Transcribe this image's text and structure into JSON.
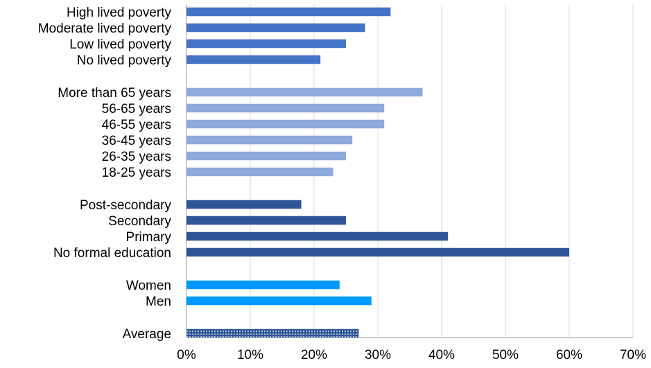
{
  "chart_data": {
    "type": "bar",
    "orientation": "horizontal",
    "title": "",
    "xlabel": "",
    "ylabel": "",
    "xlim": [
      0,
      70
    ],
    "x_ticks": [
      "0%",
      "10%",
      "20%",
      "30%",
      "40%",
      "50%",
      "60%",
      "70%"
    ],
    "x_tick_values": [
      0,
      10,
      20,
      30,
      40,
      50,
      60,
      70
    ],
    "grid": "vertical",
    "legend": "none",
    "groups": [
      {
        "color": "#4472c4",
        "pattern": "solid",
        "categories": [
          "High lived poverty",
          "Moderate lived poverty",
          "Low lived poverty",
          "No lived poverty"
        ],
        "values": [
          32,
          28,
          25,
          21
        ]
      },
      {
        "color": "#8faadc",
        "pattern": "solid",
        "categories": [
          "More than 65 years",
          "56-65 years",
          "46-55 years",
          "36-45 years",
          "26-35 years",
          "18-25 years"
        ],
        "values": [
          37,
          31,
          31,
          26,
          25,
          23
        ]
      },
      {
        "color": "#2f5597",
        "pattern": "solid",
        "categories": [
          "Post-secondary",
          "Secondary",
          "Primary",
          "No formal education"
        ],
        "values": [
          18,
          25,
          41,
          60
        ]
      },
      {
        "color": "#0099ff",
        "pattern": "solid",
        "categories": [
          "Women",
          "Men"
        ],
        "values": [
          24,
          29
        ]
      },
      {
        "color": "#2f5597",
        "pattern": "dotted",
        "categories": [
          "Average"
        ],
        "values": [
          27
        ]
      }
    ]
  }
}
